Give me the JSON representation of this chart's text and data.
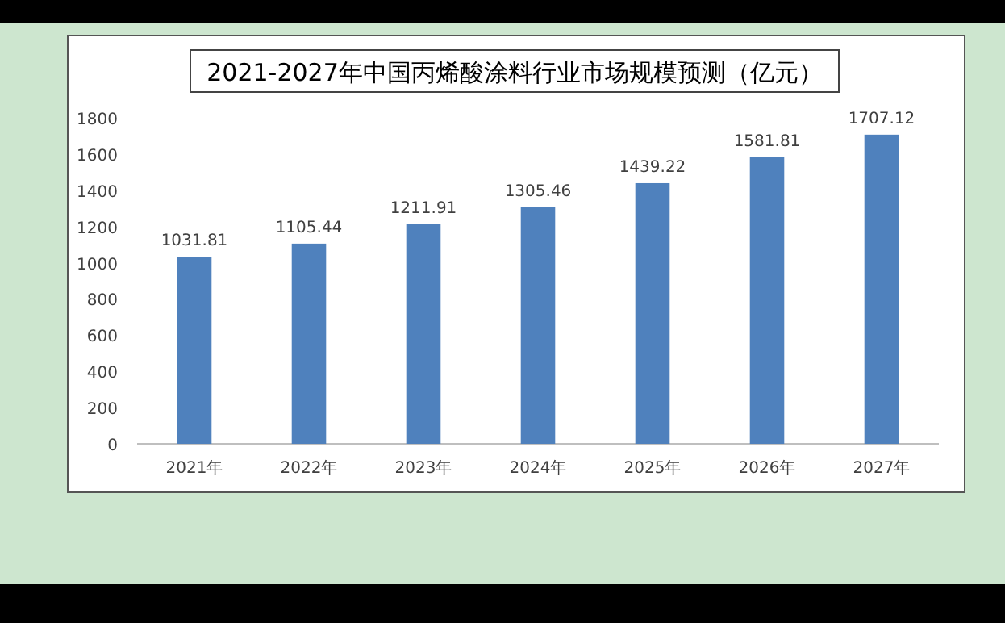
{
  "chart_data": {
    "type": "bar",
    "title": "2021-2027年中国丙烯酸涂料行业市场规模预测（亿元）",
    "categories": [
      "2021年",
      "2022年",
      "2023年",
      "2024年",
      "2025年",
      "2026年",
      "2027年"
    ],
    "values": [
      1031.81,
      1105.44,
      1211.91,
      1305.46,
      1439.22,
      1581.81,
      1707.12
    ],
    "color": "#4f81bd",
    "ylim": [
      0,
      1800
    ],
    "yticks": [
      0,
      200,
      400,
      600,
      800,
      1000,
      1200,
      1400,
      1600,
      1800
    ],
    "data_labels": true,
    "grid": false
  }
}
